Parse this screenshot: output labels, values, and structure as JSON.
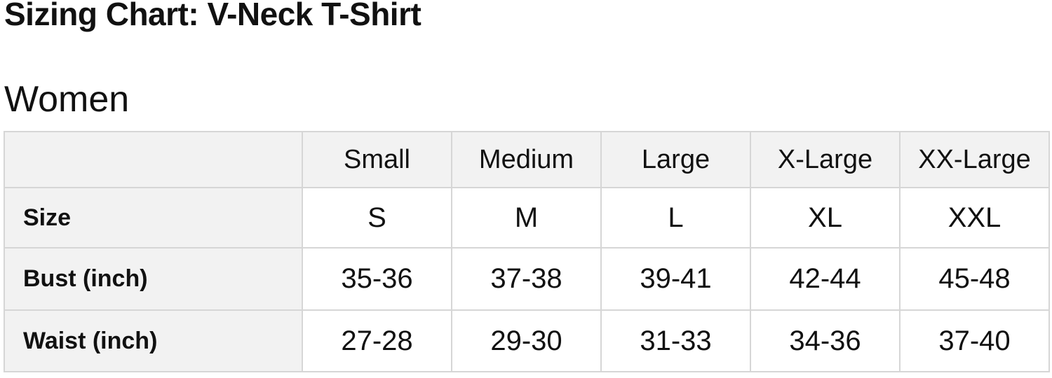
{
  "page": {
    "title": "Sizing Chart: V-Neck T-Shirt",
    "section_title": "Women"
  },
  "colors": {
    "text": "#111111",
    "gray_bg": "#f2f2f2",
    "border": "#d6d6d6",
    "cell_bg": "#ffffff"
  },
  "chart_data": {
    "type": "table",
    "title": "Sizing Chart: V-Neck T-Shirt",
    "subtitle": "Women",
    "columns": [
      "",
      "Small",
      "Medium",
      "Large",
      "X-Large",
      "XX-Large"
    ],
    "rows": [
      {
        "label": "Size",
        "values": [
          "S",
          "M",
          "L",
          "XL",
          "XXL"
        ]
      },
      {
        "label": "Bust (inch)",
        "values": [
          "35-36",
          "37-38",
          "39-41",
          "42-44",
          "45-48"
        ]
      },
      {
        "label": "Waist (inch)",
        "values": [
          "27-28",
          "29-30",
          "31-33",
          "34-36",
          "37-40"
        ]
      }
    ],
    "layout": {
      "header_row_background": "#f2f2f2",
      "label_column_background": "#f2f2f2",
      "grid": true
    }
  }
}
